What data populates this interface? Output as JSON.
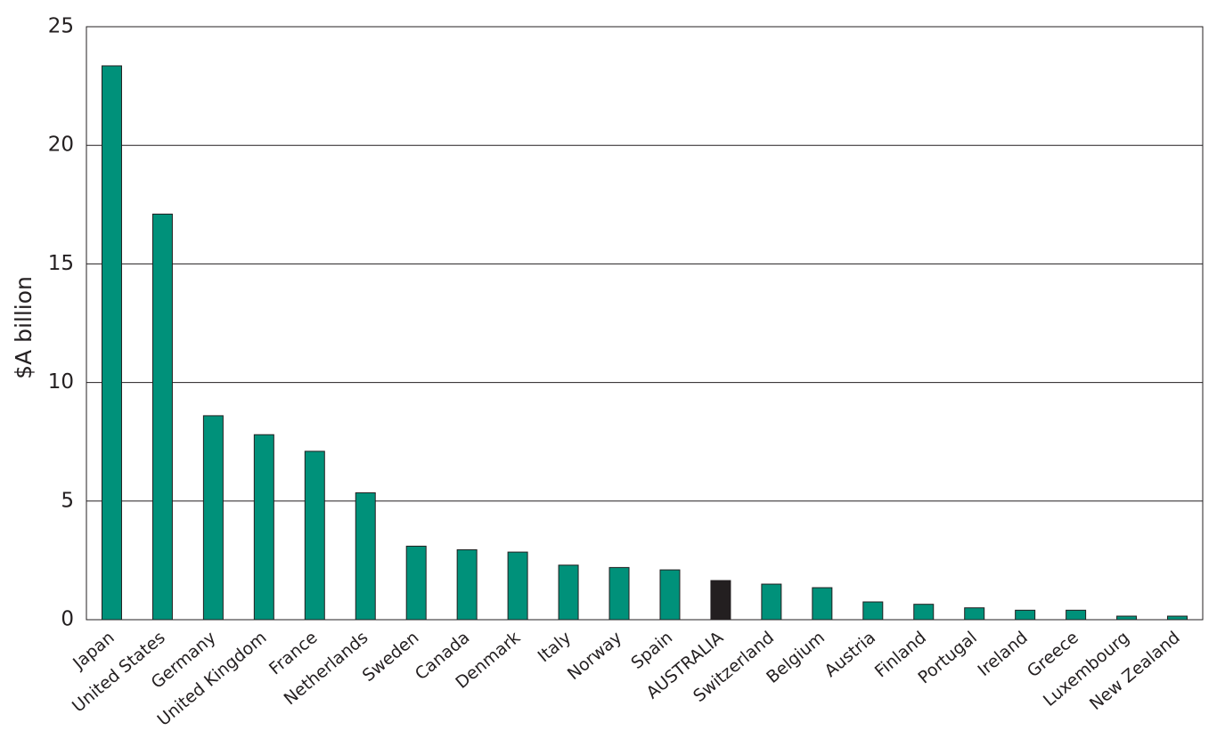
{
  "chart_data": {
    "type": "bar",
    "y_label": "$A billion",
    "categories": [
      "Japan",
      "United States",
      "Germany",
      "United Kingdom",
      "France",
      "Netherlands",
      "Sweden",
      "Canada",
      "Denmark",
      "Italy",
      "Norway",
      "Spain",
      "AUSTRALIA",
      "Switzerland",
      "Belgium",
      "Austria",
      "Finland",
      "Portugal",
      "Ireland",
      "Greece",
      "Luxembourg",
      "New Zealand"
    ],
    "values": [
      23.35,
      17.1,
      8.6,
      7.8,
      7.1,
      5.35,
      3.1,
      2.95,
      2.85,
      2.3,
      2.2,
      2.1,
      1.65,
      1.5,
      1.35,
      0.75,
      0.65,
      0.5,
      0.4,
      0.4,
      0.15,
      0.15
    ],
    "colors": [
      "#00917a",
      "#00917a",
      "#00917a",
      "#00917a",
      "#00917a",
      "#00917a",
      "#00917a",
      "#00917a",
      "#00917a",
      "#00917a",
      "#00917a",
      "#00917a",
      "#231f20",
      "#00917a",
      "#00917a",
      "#00917a",
      "#00917a",
      "#00917a",
      "#00917a",
      "#00917a",
      "#00917a",
      "#00917a"
    ],
    "ylim": [
      0,
      25
    ],
    "yticks": [
      0,
      5,
      10,
      15,
      20,
      25
    ],
    "grid": true
  }
}
